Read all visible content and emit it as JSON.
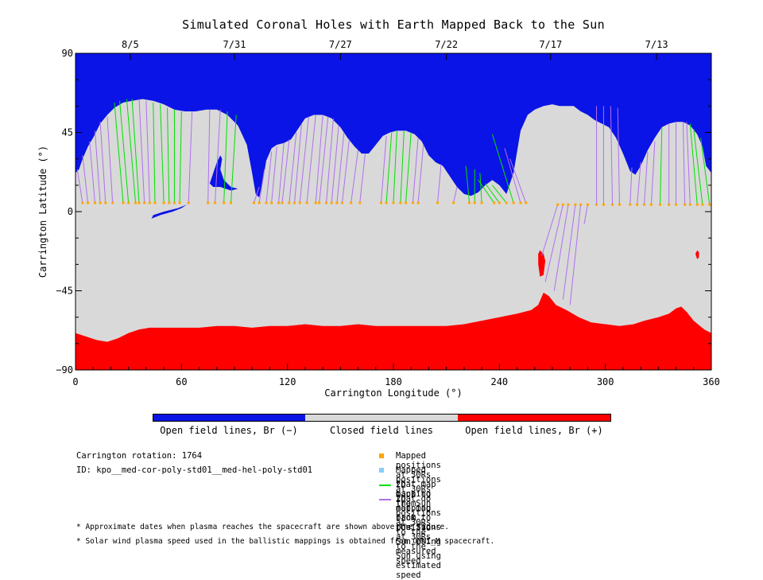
{
  "title": "Simulated Coronal Holes with Earth Mapped Back to the Sun",
  "colors": {
    "open_negative": "#0a14e6",
    "closed": "#d9d9d9",
    "open_positive": "#ff0000",
    "mapped_point": "#ffa500",
    "unmapped_point": "#87cefa",
    "measured_line": "#00e000",
    "estimated_line": "#b070ee"
  },
  "chart_data": {
    "type": "heatmap",
    "title": "Simulated Coronal Holes with Earth Mapped Back to the Sun",
    "xlabel": "Carrington Longitude (°)",
    "ylabel": "Carrington Latitude (°)",
    "xlim": [
      0,
      360
    ],
    "ylim": [
      -90,
      90
    ],
    "x_ticks": [
      0,
      60,
      120,
      180,
      240,
      300,
      360
    ],
    "y_ticks": [
      -90,
      -45,
      0,
      45,
      90
    ],
    "y_tick_labels": [
      "−90",
      "−45",
      "0",
      "45",
      "90"
    ],
    "top_axis_dates": [
      {
        "label": "8/5",
        "lon": 31
      },
      {
        "label": "7/31",
        "lon": 90
      },
      {
        "label": "7/27",
        "lon": 150
      },
      {
        "label": "7/22",
        "lon": 210
      },
      {
        "label": "7/17",
        "lon": 269
      },
      {
        "label": "7/13",
        "lon": 329
      }
    ],
    "north_boundary": [
      [
        0,
        22
      ],
      [
        2,
        24
      ],
      [
        4,
        30
      ],
      [
        7,
        37
      ],
      [
        10,
        42
      ],
      [
        14,
        50
      ],
      [
        18,
        55
      ],
      [
        22,
        59
      ],
      [
        27,
        62
      ],
      [
        32,
        63
      ],
      [
        38,
        64
      ],
      [
        44,
        63
      ],
      [
        50,
        61
      ],
      [
        56,
        58
      ],
      [
        62,
        57
      ],
      [
        68,
        57
      ],
      [
        74,
        58
      ],
      [
        80,
        58
      ],
      [
        86,
        55
      ],
      [
        92,
        49
      ],
      [
        97,
        38
      ],
      [
        100,
        22
      ],
      [
        102,
        10
      ],
      [
        104,
        8
      ],
      [
        106,
        17
      ],
      [
        108,
        29
      ],
      [
        111,
        36
      ],
      [
        114,
        38
      ],
      [
        118,
        39
      ],
      [
        122,
        41
      ],
      [
        126,
        47
      ],
      [
        130,
        53
      ],
      [
        135,
        55
      ],
      [
        140,
        55
      ],
      [
        145,
        53
      ],
      [
        150,
        48
      ],
      [
        154,
        42
      ],
      [
        158,
        37
      ],
      [
        162,
        33
      ],
      [
        166,
        33
      ],
      [
        170,
        38
      ],
      [
        174,
        43
      ],
      [
        178,
        45
      ],
      [
        182,
        46
      ],
      [
        187,
        46
      ],
      [
        192,
        44
      ],
      [
        196,
        40
      ],
      [
        200,
        32
      ],
      [
        204,
        28
      ],
      [
        208,
        26
      ],
      [
        212,
        20
      ],
      [
        216,
        14
      ],
      [
        220,
        10
      ],
      [
        224,
        9
      ],
      [
        228,
        11
      ],
      [
        232,
        15
      ],
      [
        236,
        18
      ],
      [
        240,
        15
      ],
      [
        244,
        10
      ],
      [
        248,
        22
      ],
      [
        252,
        46
      ],
      [
        256,
        55
      ],
      [
        260,
        58
      ],
      [
        265,
        60
      ],
      [
        270,
        61
      ],
      [
        274,
        60
      ],
      [
        278,
        60
      ],
      [
        282,
        60
      ],
      [
        286,
        57
      ],
      [
        290,
        55
      ],
      [
        294,
        52
      ],
      [
        298,
        50
      ],
      [
        302,
        48
      ],
      [
        306,
        42
      ],
      [
        310,
        33
      ],
      [
        314,
        23
      ],
      [
        317,
        21
      ],
      [
        320,
        26
      ],
      [
        324,
        35
      ],
      [
        328,
        42
      ],
      [
        332,
        48
      ],
      [
        336,
        50
      ],
      [
        340,
        51
      ],
      [
        344,
        51
      ],
      [
        348,
        49
      ],
      [
        352,
        44
      ],
      [
        355,
        37
      ],
      [
        357,
        26
      ],
      [
        360,
        22
      ]
    ],
    "south_boundary": [
      [
        0,
        -69
      ],
      [
        6,
        -71
      ],
      [
        12,
        -73
      ],
      [
        18,
        -74
      ],
      [
        24,
        -72
      ],
      [
        30,
        -69
      ],
      [
        36,
        -67
      ],
      [
        42,
        -66
      ],
      [
        50,
        -66
      ],
      [
        60,
        -66
      ],
      [
        70,
        -66
      ],
      [
        80,
        -65
      ],
      [
        90,
        -65
      ],
      [
        100,
        -66
      ],
      [
        110,
        -65
      ],
      [
        120,
        -65
      ],
      [
        130,
        -64
      ],
      [
        140,
        -65
      ],
      [
        150,
        -65
      ],
      [
        160,
        -64
      ],
      [
        170,
        -65
      ],
      [
        180,
        -65
      ],
      [
        190,
        -65
      ],
      [
        200,
        -65
      ],
      [
        210,
        -65
      ],
      [
        220,
        -64
      ],
      [
        230,
        -62
      ],
      [
        240,
        -60
      ],
      [
        250,
        -58
      ],
      [
        258,
        -56
      ],
      [
        262,
        -53
      ],
      [
        265,
        -46
      ],
      [
        268,
        -48
      ],
      [
        272,
        -53
      ],
      [
        278,
        -56
      ],
      [
        285,
        -60
      ],
      [
        292,
        -63
      ],
      [
        300,
        -64
      ],
      [
        308,
        -65
      ],
      [
        316,
        -64
      ],
      [
        322,
        -62
      ],
      [
        330,
        -60
      ],
      [
        336,
        -58
      ],
      [
        340,
        -55
      ],
      [
        343,
        -54
      ],
      [
        346,
        -57
      ],
      [
        350,
        -62
      ],
      [
        356,
        -67
      ],
      [
        360,
        -69
      ]
    ],
    "negative_islands": [
      [
        [
          76,
          16
        ],
        [
          78,
          22
        ],
        [
          80,
          28
        ],
        [
          82,
          32
        ],
        [
          83,
          30
        ],
        [
          82,
          24
        ],
        [
          84,
          18
        ],
        [
          88,
          14
        ],
        [
          92,
          13
        ],
        [
          88,
          12
        ],
        [
          82,
          14
        ],
        [
          78,
          14
        ]
      ],
      [
        [
          43,
          -4
        ],
        [
          48,
          -2
        ],
        [
          55,
          0
        ],
        [
          60,
          2
        ],
        [
          63,
          4
        ],
        [
          58,
          2
        ],
        [
          50,
          0
        ],
        [
          44,
          -2
        ]
      ],
      [
        [
          198,
          50
        ],
        [
          201,
          51
        ],
        [
          203,
          49
        ],
        [
          200,
          47
        ],
        [
          197,
          48
        ]
      ],
      [
        [
          214,
          52
        ],
        [
          217,
          53
        ],
        [
          219,
          51
        ],
        [
          216,
          50
        ]
      ]
    ],
    "positive_islands": [
      [
        [
          263,
          -22
        ],
        [
          265,
          -24
        ],
        [
          266,
          -28
        ],
        [
          265,
          -36
        ],
        [
          263,
          -37
        ],
        [
          262,
          -30
        ],
        [
          262,
          -24
        ]
      ],
      [
        [
          352,
          -22
        ],
        [
          353,
          -23
        ],
        [
          353,
          -26
        ],
        [
          352,
          -27
        ],
        [
          351,
          -24
        ]
      ]
    ],
    "mapped_positions_lon": [
      4,
      7,
      11,
      14,
      17,
      21,
      27,
      30,
      34,
      36,
      39,
      42,
      45,
      50,
      53,
      56,
      59,
      64,
      75,
      79,
      84,
      88,
      101,
      104,
      108,
      111,
      115,
      117,
      121,
      124,
      127,
      131,
      136,
      138,
      142,
      145,
      148,
      151,
      156,
      161,
      173,
      176,
      180,
      184,
      187,
      191,
      194,
      205,
      214,
      223,
      226,
      230,
      237,
      240,
      244,
      248,
      252,
      255,
      273,
      276,
      279,
      283,
      286,
      290,
      295,
      299,
      304,
      308,
      314,
      318,
      322,
      326,
      331,
      336,
      340,
      345,
      348,
      352,
      355,
      359
    ],
    "mapped_positions_lat": [
      5,
      5,
      5,
      5,
      5,
      5,
      5,
      5,
      5,
      5,
      5,
      5,
      5,
      5,
      5,
      5,
      5,
      5,
      5,
      5,
      5,
      5,
      5,
      5,
      5,
      5,
      5,
      5,
      5,
      5,
      5,
      5,
      5,
      5,
      5,
      5,
      5,
      5,
      5,
      5,
      5,
      5,
      5,
      5,
      5,
      5,
      5,
      5,
      5,
      5,
      5,
      5,
      5,
      5,
      5,
      5,
      5,
      5,
      4,
      4,
      4,
      4,
      4,
      4,
      4,
      4,
      4,
      4,
      4,
      4,
      4,
      4,
      4,
      4,
      4,
      4,
      4,
      4,
      4,
      4
    ],
    "mapping_lines": [
      {
        "x0": 4,
        "x1": 1,
        "y1": 24,
        "kind": "est"
      },
      {
        "x0": 7,
        "x1": 4,
        "y1": 32,
        "kind": "est"
      },
      {
        "x0": 11,
        "x1": 8,
        "y1": 40,
        "kind": "est"
      },
      {
        "x0": 14,
        "x1": 11,
        "y1": 46,
        "kind": "est"
      },
      {
        "x0": 17,
        "x1": 14,
        "y1": 51,
        "kind": "est"
      },
      {
        "x0": 21,
        "x1": 18,
        "y1": 54,
        "kind": "est"
      },
      {
        "x0": 27,
        "x1": 22,
        "y1": 62,
        "kind": "meas"
      },
      {
        "x0": 30,
        "x1": 25,
        "y1": 63,
        "kind": "meas"
      },
      {
        "x0": 34,
        "x1": 29,
        "y1": 64,
        "kind": "meas"
      },
      {
        "x0": 36,
        "x1": 32,
        "y1": 64,
        "kind": "meas"
      },
      {
        "x0": 39,
        "x1": 36,
        "y1": 64,
        "kind": "est"
      },
      {
        "x0": 42,
        "x1": 40,
        "y1": 63,
        "kind": "est"
      },
      {
        "x0": 45,
        "x1": 44,
        "y1": 62,
        "kind": "meas"
      },
      {
        "x0": 50,
        "x1": 48,
        "y1": 61,
        "kind": "meas"
      },
      {
        "x0": 53,
        "x1": 52,
        "y1": 59,
        "kind": "meas"
      },
      {
        "x0": 56,
        "x1": 56,
        "y1": 58,
        "kind": "meas"
      },
      {
        "x0": 59,
        "x1": 60,
        "y1": 57,
        "kind": "meas"
      },
      {
        "x0": 64,
        "x1": 66,
        "y1": 57,
        "kind": "est"
      },
      {
        "x0": 75,
        "x1": 76,
        "y1": 58,
        "kind": "est"
      },
      {
        "x0": 79,
        "x1": 82,
        "y1": 58,
        "kind": "est"
      },
      {
        "x0": 84,
        "x1": 86,
        "y1": 57,
        "kind": "meas"
      },
      {
        "x0": 88,
        "x1": 91,
        "y1": 55,
        "kind": "meas"
      },
      {
        "x0": 101,
        "x1": 104,
        "y1": 14,
        "kind": "est"
      },
      {
        "x0": 104,
        "x1": 107,
        "y1": 24,
        "kind": "est"
      },
      {
        "x0": 108,
        "x1": 111,
        "y1": 34,
        "kind": "est"
      },
      {
        "x0": 111,
        "x1": 114,
        "y1": 37,
        "kind": "est"
      },
      {
        "x0": 115,
        "x1": 118,
        "y1": 39,
        "kind": "est"
      },
      {
        "x0": 117,
        "x1": 121,
        "y1": 41,
        "kind": "est"
      },
      {
        "x0": 121,
        "x1": 125,
        "y1": 45,
        "kind": "est"
      },
      {
        "x0": 124,
        "x1": 128,
        "y1": 50,
        "kind": "est"
      },
      {
        "x0": 127,
        "x1": 132,
        "y1": 54,
        "kind": "est"
      },
      {
        "x0": 131,
        "x1": 136,
        "y1": 55,
        "kind": "est"
      },
      {
        "x0": 136,
        "x1": 140,
        "y1": 55,
        "kind": "est"
      },
      {
        "x0": 138,
        "x1": 143,
        "y1": 54,
        "kind": "est"
      },
      {
        "x0": 142,
        "x1": 146,
        "y1": 53,
        "kind": "est"
      },
      {
        "x0": 145,
        "x1": 149,
        "y1": 49,
        "kind": "est"
      },
      {
        "x0": 148,
        "x1": 152,
        "y1": 45,
        "kind": "est"
      },
      {
        "x0": 151,
        "x1": 155,
        "y1": 41,
        "kind": "est"
      },
      {
        "x0": 156,
        "x1": 160,
        "y1": 35,
        "kind": "est"
      },
      {
        "x0": 161,
        "x1": 164,
        "y1": 33,
        "kind": "est"
      },
      {
        "x0": 173,
        "x1": 176,
        "y1": 43,
        "kind": "est"
      },
      {
        "x0": 176,
        "x1": 179,
        "y1": 45,
        "kind": "meas"
      },
      {
        "x0": 180,
        "x1": 182,
        "y1": 46,
        "kind": "meas"
      },
      {
        "x0": 184,
        "x1": 186,
        "y1": 46,
        "kind": "meas"
      },
      {
        "x0": 187,
        "x1": 190,
        "y1": 45,
        "kind": "meas"
      },
      {
        "x0": 191,
        "x1": 194,
        "y1": 42,
        "kind": "est"
      },
      {
        "x0": 194,
        "x1": 197,
        "y1": 38,
        "kind": "est"
      },
      {
        "x0": 205,
        "x1": 207,
        "y1": 27,
        "kind": "est"
      },
      {
        "x0": 214,
        "x1": 216,
        "y1": 14,
        "kind": "est"
      },
      {
        "x0": 223,
        "x1": 221,
        "y1": 26,
        "kind": "meas"
      },
      {
        "x0": 226,
        "x1": 226,
        "y1": 24,
        "kind": "meas"
      },
      {
        "x0": 230,
        "x1": 229,
        "y1": 22,
        "kind": "meas"
      },
      {
        "x0": 237,
        "x1": 228,
        "y1": 18,
        "kind": "meas"
      },
      {
        "x0": 240,
        "x1": 232,
        "y1": 16,
        "kind": "meas"
      },
      {
        "x0": 244,
        "x1": 236,
        "y1": 15,
        "kind": "meas"
      },
      {
        "x0": 248,
        "x1": 236,
        "y1": 44,
        "kind": "meas"
      },
      {
        "x0": 252,
        "x1": 243,
        "y1": 36,
        "kind": "est"
      },
      {
        "x0": 255,
        "x1": 246,
        "y1": 30,
        "kind": "est"
      },
      {
        "x0": 273,
        "x1": 264,
        "y1": -25,
        "kind": "est"
      },
      {
        "x0": 276,
        "x1": 266,
        "y1": -40,
        "kind": "est"
      },
      {
        "x0": 279,
        "x1": 271,
        "y1": -45,
        "kind": "est"
      },
      {
        "x0": 283,
        "x1": 276,
        "y1": -50,
        "kind": "est"
      },
      {
        "x0": 286,
        "x1": 280,
        "y1": -53,
        "kind": "est"
      },
      {
        "x0": 290,
        "x1": 288,
        "y1": -7,
        "kind": "est"
      },
      {
        "x0": 295,
        "x1": 295,
        "y1": 60,
        "kind": "est"
      },
      {
        "x0": 299,
        "x1": 299,
        "y1": 60,
        "kind": "est"
      },
      {
        "x0": 304,
        "x1": 303,
        "y1": 60,
        "kind": "est"
      },
      {
        "x0": 308,
        "x1": 307,
        "y1": 59,
        "kind": "est"
      },
      {
        "x0": 314,
        "x1": 315,
        "y1": 25,
        "kind": "est"
      },
      {
        "x0": 318,
        "x1": 320,
        "y1": 28,
        "kind": "est"
      },
      {
        "x0": 322,
        "x1": 324,
        "y1": 34,
        "kind": "est"
      },
      {
        "x0": 326,
        "x1": 328,
        "y1": 40,
        "kind": "est"
      },
      {
        "x0": 331,
        "x1": 332,
        "y1": 48,
        "kind": "meas"
      },
      {
        "x0": 336,
        "x1": 336,
        "y1": 50,
        "kind": "est"
      },
      {
        "x0": 340,
        "x1": 340,
        "y1": 51,
        "kind": "est"
      },
      {
        "x0": 345,
        "x1": 344,
        "y1": 51,
        "kind": "est"
      },
      {
        "x0": 348,
        "x1": 346,
        "y1": 51,
        "kind": "est"
      },
      {
        "x0": 352,
        "x1": 348,
        "y1": 50,
        "kind": "meas"
      },
      {
        "x0": 355,
        "x1": 350,
        "y1": 47,
        "kind": "meas"
      },
      {
        "x0": 359,
        "x1": 354,
        "y1": 42,
        "kind": "meas"
      }
    ]
  },
  "colorbar": {
    "labels": [
      "Open field lines, Br (−)",
      "Closed field lines",
      "Open field lines, Br (+)"
    ]
  },
  "info": {
    "rotation": "Carrington rotation: 1764",
    "id": "ID: kpo__med-cor-poly-std01__med-hel-poly-std01"
  },
  "legend": {
    "mapped": "Mapped positions at 30Rs that map back to the Sun",
    "unmapped": "Mapped positions at 30Rs that do not map back to the Sun",
    "measured": "2D mapping from positions at 30Rs to the Sun using measured speed",
    "estimated": "2D mapping from positions at 30Rs to the Sun using estimated speed"
  },
  "footnotes": {
    "dates": "* Approximate dates when plasma reaches the spacecraft are shown above the figure.",
    "speed": "* Solar wind plasma speed used in the ballistic mappings is obtained from OMNI_M spacecraft."
  }
}
